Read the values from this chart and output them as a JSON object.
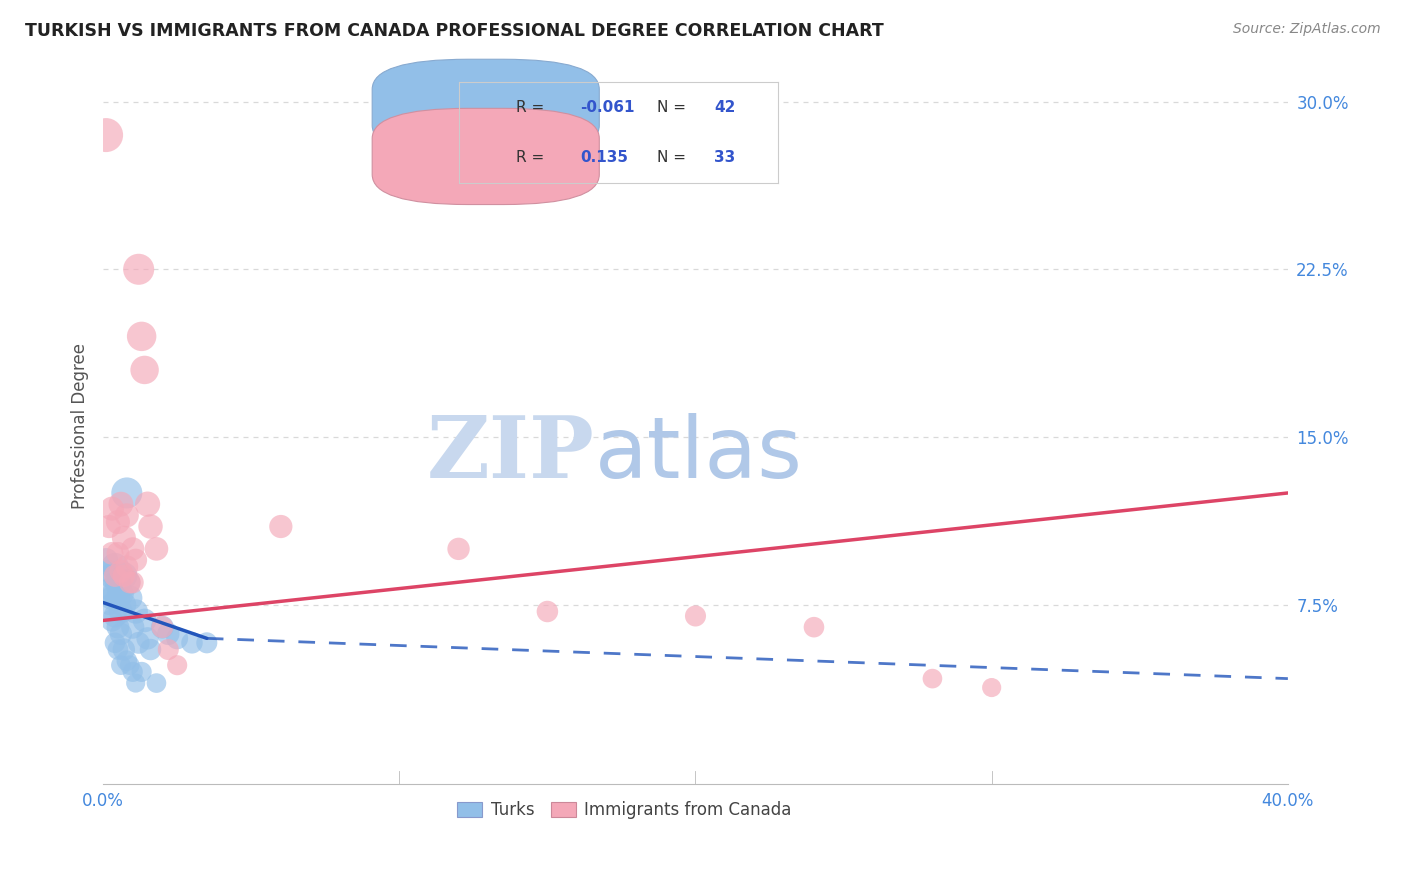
{
  "title": "TURKISH VS IMMIGRANTS FROM CANADA PROFESSIONAL DEGREE CORRELATION CHART",
  "source": "Source: ZipAtlas.com",
  "ylabel": "Professional Degree",
  "legend_label1": "Turks",
  "legend_label2": "Immigrants from Canada",
  "blue_color": "#92bfe8",
  "pink_color": "#f4a8b8",
  "line_blue": "#2255bb",
  "line_pink": "#dd4466",
  "xlim": [
    0.0,
    0.4
  ],
  "ylim": [
    -0.005,
    0.315
  ],
  "watermark_zip": "ZIP",
  "watermark_atlas": "atlas",
  "watermark_color_zip": "#c8d8ee",
  "watermark_color_atlas": "#b0c8e8",
  "background_color": "#ffffff",
  "grid_color": "#d0d0d0",
  "turks_x": [
    0.001,
    0.002,
    0.002,
    0.002,
    0.003,
    0.003,
    0.003,
    0.004,
    0.004,
    0.004,
    0.004,
    0.005,
    0.005,
    0.005,
    0.005,
    0.006,
    0.006,
    0.006,
    0.006,
    0.007,
    0.007,
    0.007,
    0.008,
    0.008,
    0.008,
    0.009,
    0.009,
    0.01,
    0.01,
    0.011,
    0.011,
    0.012,
    0.013,
    0.014,
    0.015,
    0.016,
    0.018,
    0.02,
    0.022,
    0.025,
    0.03,
    0.035
  ],
  "turks_y": [
    0.095,
    0.09,
    0.082,
    0.075,
    0.088,
    0.078,
    0.068,
    0.092,
    0.08,
    0.07,
    0.058,
    0.085,
    0.078,
    0.065,
    0.055,
    0.08,
    0.072,
    0.062,
    0.048,
    0.088,
    0.075,
    0.055,
    0.125,
    0.085,
    0.05,
    0.078,
    0.048,
    0.065,
    0.045,
    0.072,
    0.04,
    0.058,
    0.045,
    0.068,
    0.06,
    0.055,
    0.04,
    0.065,
    0.062,
    0.06,
    0.058,
    0.058
  ],
  "canada_x": [
    0.001,
    0.002,
    0.003,
    0.003,
    0.004,
    0.005,
    0.005,
    0.006,
    0.006,
    0.007,
    0.007,
    0.008,
    0.008,
    0.009,
    0.01,
    0.01,
    0.011,
    0.012,
    0.013,
    0.014,
    0.015,
    0.016,
    0.018,
    0.02,
    0.022,
    0.025,
    0.06,
    0.12,
    0.15,
    0.2,
    0.24,
    0.28,
    0.3
  ],
  "canada_y": [
    0.285,
    0.11,
    0.098,
    0.118,
    0.088,
    0.112,
    0.098,
    0.12,
    0.09,
    0.105,
    0.088,
    0.092,
    0.115,
    0.085,
    0.1,
    0.085,
    0.095,
    0.225,
    0.195,
    0.18,
    0.12,
    0.11,
    0.1,
    0.065,
    0.055,
    0.048,
    0.11,
    0.1,
    0.072,
    0.07,
    0.065,
    0.042,
    0.038
  ],
  "turks_sizes": [
    300,
    280,
    250,
    220,
    350,
    300,
    260,
    400,
    350,
    280,
    220,
    380,
    320,
    270,
    220,
    350,
    300,
    260,
    200,
    380,
    320,
    260,
    500,
    380,
    220,
    330,
    200,
    280,
    210,
    310,
    190,
    250,
    210,
    290,
    260,
    240,
    200,
    270,
    260,
    250,
    240,
    230
  ],
  "canada_sizes": [
    600,
    280,
    270,
    300,
    260,
    300,
    270,
    320,
    270,
    300,
    260,
    270,
    300,
    250,
    280,
    250,
    270,
    500,
    450,
    420,
    330,
    310,
    290,
    250,
    230,
    210,
    280,
    260,
    240,
    230,
    220,
    200,
    190
  ],
  "blue_line_x_solid_start": 0.0,
  "blue_line_x_solid_end": 0.035,
  "blue_line_x_dashed_end": 0.4,
  "blue_line_y_at_0": 0.076,
  "blue_line_y_at_035": 0.06,
  "blue_line_y_at_40": 0.042,
  "pink_line_x_start": 0.0,
  "pink_line_x_end": 0.4,
  "pink_line_y_at_0": 0.068,
  "pink_line_y_at_40": 0.125
}
